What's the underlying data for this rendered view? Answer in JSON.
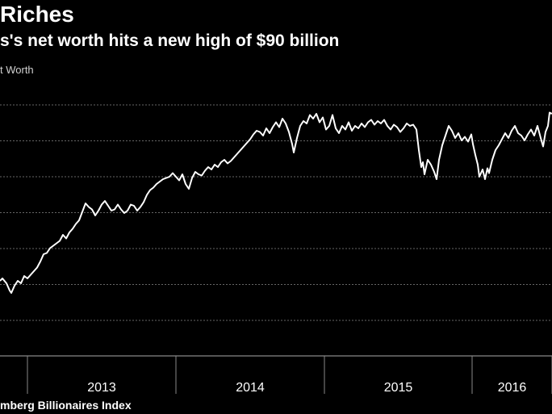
{
  "title": "Riches",
  "subtitle": "s's net worth hits a new high of $90 billion",
  "series_label": "t Worth",
  "source": "mberg Billionaires Index",
  "colors": {
    "background": "#000000",
    "line": "#ffffff",
    "grid": "#666666"
  },
  "chart_data": {
    "type": "line",
    "x_ticks": [
      "2013",
      "2014",
      "2015",
      "2016"
    ],
    "y_gridlines": 7,
    "grid": "horizontal dashed",
    "series": [
      {
        "values": [
          [
            0,
            0.62
          ],
          [
            3,
            0.64
          ],
          [
            8,
            0.6
          ],
          [
            12,
            0.54
          ],
          [
            14,
            0.52
          ],
          [
            18,
            0.58
          ],
          [
            22,
            0.62
          ],
          [
            26,
            0.6
          ],
          [
            30,
            0.66
          ],
          [
            34,
            0.64
          ],
          [
            38,
            0.67
          ],
          [
            42,
            0.7
          ],
          [
            46,
            0.73
          ],
          [
            50,
            0.78
          ],
          [
            54,
            0.84
          ],
          [
            58,
            0.85
          ],
          [
            62,
            0.89
          ],
          [
            66,
            0.91
          ],
          [
            70,
            0.93
          ],
          [
            74,
            0.95
          ],
          [
            78,
            1.0
          ],
          [
            82,
            0.97
          ],
          [
            86,
            1.02
          ],
          [
            90,
            1.05
          ],
          [
            94,
            1.09
          ],
          [
            98,
            1.12
          ],
          [
            102,
            1.19
          ],
          [
            106,
            1.26
          ],
          [
            110,
            1.23
          ],
          [
            114,
            1.21
          ],
          [
            118,
            1.16
          ],
          [
            122,
            1.2
          ],
          [
            126,
            1.25
          ],
          [
            130,
            1.28
          ],
          [
            134,
            1.24
          ],
          [
            138,
            1.2
          ],
          [
            142,
            1.21
          ],
          [
            146,
            1.25
          ],
          [
            150,
            1.21
          ],
          [
            154,
            1.18
          ],
          [
            158,
            1.2
          ],
          [
            162,
            1.25
          ],
          [
            166,
            1.24
          ],
          [
            170,
            1.2
          ],
          [
            174,
            1.23
          ],
          [
            178,
            1.27
          ],
          [
            182,
            1.33
          ],
          [
            186,
            1.37
          ],
          [
            190,
            1.39
          ],
          [
            194,
            1.42
          ],
          [
            198,
            1.44
          ],
          [
            202,
            1.46
          ],
          [
            206,
            1.47
          ],
          [
            210,
            1.48
          ],
          [
            214,
            1.51
          ],
          [
            218,
            1.48
          ],
          [
            222,
            1.45
          ],
          [
            226,
            1.5
          ],
          [
            230,
            1.42
          ],
          [
            234,
            1.38
          ],
          [
            238,
            1.47
          ],
          [
            242,
            1.52
          ],
          [
            246,
            1.5
          ],
          [
            250,
            1.49
          ],
          [
            254,
            1.53
          ],
          [
            258,
            1.56
          ],
          [
            262,
            1.54
          ],
          [
            266,
            1.58
          ],
          [
            270,
            1.56
          ],
          [
            274,
            1.6
          ],
          [
            278,
            1.62
          ],
          [
            282,
            1.59
          ],
          [
            286,
            1.61
          ],
          [
            290,
            1.64
          ],
          [
            294,
            1.67
          ],
          [
            298,
            1.7
          ],
          [
            302,
            1.73
          ],
          [
            306,
            1.76
          ],
          [
            310,
            1.79
          ],
          [
            314,
            1.83
          ],
          [
            318,
            1.86
          ],
          [
            322,
            1.85
          ],
          [
            326,
            1.82
          ],
          [
            330,
            1.88
          ],
          [
            334,
            1.84
          ],
          [
            338,
            1.89
          ],
          [
            342,
            1.93
          ],
          [
            346,
            1.89
          ],
          [
            350,
            1.96
          ],
          [
            354,
            1.92
          ],
          [
            358,
            1.85
          ],
          [
            362,
            1.75
          ],
          [
            364,
            1.68
          ],
          [
            368,
            1.8
          ],
          [
            372,
            1.9
          ],
          [
            376,
            1.94
          ],
          [
            380,
            1.92
          ],
          [
            384,
            1.99
          ],
          [
            388,
            1.96
          ],
          [
            392,
            2.0
          ],
          [
            396,
            1.93
          ],
          [
            400,
            1.97
          ],
          [
            404,
            1.87
          ],
          [
            408,
            1.9
          ],
          [
            412,
            1.99
          ],
          [
            416,
            1.88
          ],
          [
            420,
            1.84
          ],
          [
            424,
            1.9
          ],
          [
            428,
            1.87
          ],
          [
            432,
            1.93
          ],
          [
            436,
            1.86
          ],
          [
            440,
            1.9
          ],
          [
            444,
            1.88
          ],
          [
            448,
            1.92
          ],
          [
            452,
            1.89
          ],
          [
            456,
            1.93
          ],
          [
            460,
            1.95
          ],
          [
            464,
            1.91
          ],
          [
            468,
            1.94
          ],
          [
            472,
            1.92
          ],
          [
            476,
            1.95
          ],
          [
            480,
            1.9
          ],
          [
            484,
            1.87
          ],
          [
            488,
            1.91
          ],
          [
            492,
            1.89
          ],
          [
            496,
            1.85
          ],
          [
            500,
            1.88
          ],
          [
            504,
            1.92
          ],
          [
            508,
            1.9
          ],
          [
            512,
            1.91
          ],
          [
            516,
            1.87
          ],
          [
            519,
            1.7
          ],
          [
            522,
            1.56
          ],
          [
            524,
            1.6
          ],
          [
            526,
            1.5
          ],
          [
            530,
            1.62
          ],
          [
            534,
            1.58
          ],
          [
            538,
            1.52
          ],
          [
            541,
            1.46
          ],
          [
            544,
            1.62
          ],
          [
            548,
            1.74
          ],
          [
            552,
            1.82
          ],
          [
            556,
            1.9
          ],
          [
            560,
            1.86
          ],
          [
            564,
            1.8
          ],
          [
            568,
            1.84
          ],
          [
            572,
            1.78
          ],
          [
            576,
            1.81
          ],
          [
            580,
            1.77
          ],
          [
            584,
            1.83
          ],
          [
            586,
            1.75
          ],
          [
            589,
            1.66
          ],
          [
            592,
            1.58
          ],
          [
            594,
            1.48
          ],
          [
            598,
            1.54
          ],
          [
            601,
            1.46
          ],
          [
            604,
            1.55
          ],
          [
            606,
            1.51
          ],
          [
            610,
            1.62
          ],
          [
            614,
            1.7
          ],
          [
            618,
            1.74
          ],
          [
            622,
            1.79
          ],
          [
            626,
            1.84
          ],
          [
            630,
            1.8
          ],
          [
            634,
            1.86
          ],
          [
            638,
            1.9
          ],
          [
            642,
            1.84
          ],
          [
            646,
            1.82
          ],
          [
            650,
            1.78
          ],
          [
            654,
            1.83
          ],
          [
            658,
            1.87
          ],
          [
            662,
            1.82
          ],
          [
            666,
            1.9
          ],
          [
            670,
            1.8
          ],
          [
            673,
            1.73
          ],
          [
            676,
            1.85
          ],
          [
            679,
            1.9
          ],
          [
            681,
            2.01
          ],
          [
            684,
            2.0
          ]
        ]
      }
    ]
  }
}
